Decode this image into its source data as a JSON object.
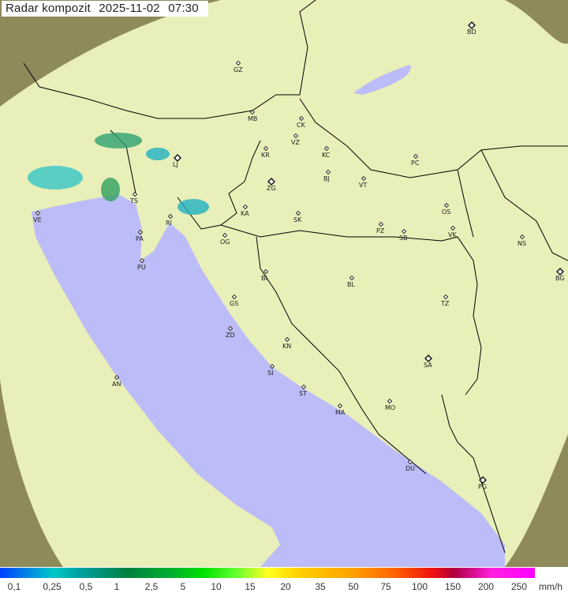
{
  "header": {
    "title": "Radar kompozit",
    "date": "2025-11-02",
    "time": "07:30"
  },
  "colors": {
    "sea": "#bcbcf8",
    "coverage": "#e8efb8",
    "outside": "#8e8a5a",
    "border": "#000000"
  },
  "cities": [
    {
      "code": "GZ"
    },
    {
      "code": "BD"
    },
    {
      "code": "MB"
    },
    {
      "code": "CK"
    },
    {
      "code": "VZ"
    },
    {
      "code": "KR"
    },
    {
      "code": "KC"
    },
    {
      "code": "LJ"
    },
    {
      "code": "PC"
    },
    {
      "code": "ZG"
    },
    {
      "code": "BJ"
    },
    {
      "code": "VT"
    },
    {
      "code": "TS"
    },
    {
      "code": "VE"
    },
    {
      "code": "RI"
    },
    {
      "code": "KA"
    },
    {
      "code": "SK"
    },
    {
      "code": "OS"
    },
    {
      "code": "PA"
    },
    {
      "code": "OG"
    },
    {
      "code": "PZ"
    },
    {
      "code": "SB"
    },
    {
      "code": "VK"
    },
    {
      "code": "NS"
    },
    {
      "code": "PU"
    },
    {
      "code": "BG"
    },
    {
      "code": "BI"
    },
    {
      "code": "BL"
    },
    {
      "code": "GS"
    },
    {
      "code": "TZ"
    },
    {
      "code": "ZD"
    },
    {
      "code": "KN"
    },
    {
      "code": "SA"
    },
    {
      "code": "AN"
    },
    {
      "code": "SI"
    },
    {
      "code": "ST"
    },
    {
      "code": "MA"
    },
    {
      "code": "MO"
    },
    {
      "code": "DU"
    },
    {
      "code": "PG"
    }
  ],
  "legend": {
    "labels": [
      "0,1",
      "0,25",
      "0,5",
      "1",
      "2,5",
      "5",
      "10",
      "15",
      "20",
      "35",
      "50",
      "75",
      "100",
      "150",
      "200",
      "250"
    ],
    "unit": "mm/h"
  }
}
